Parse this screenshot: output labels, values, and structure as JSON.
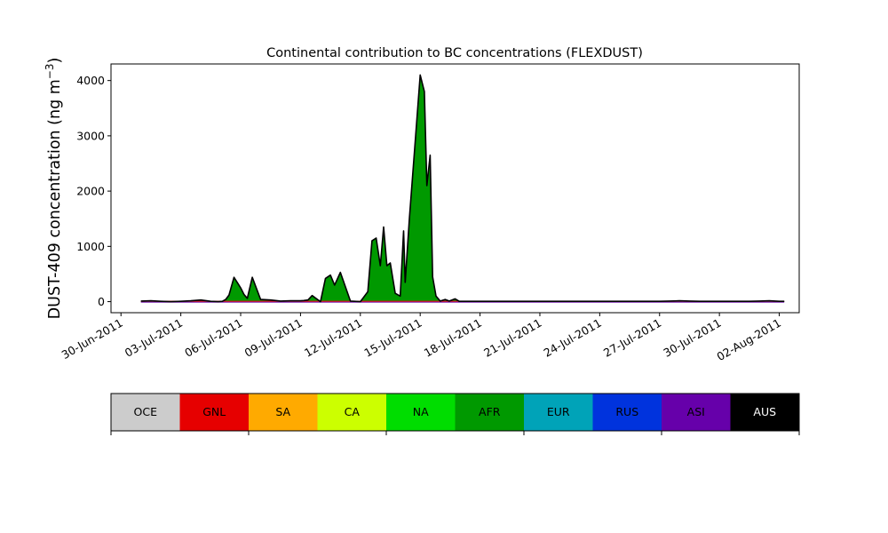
{
  "chart_data": {
    "type": "area",
    "title": "Continental contribution to BC concentrations (FLEXDUST)",
    "ylabel_main": "DUST-409 concentration (ng m",
    "ylabel_sup": "−3",
    "ylabel_end": ")",
    "xlabel": "",
    "xlim": [
      "2011-06-29T12:00",
      "2011-08-03T00:00"
    ],
    "ylim": [
      -200,
      4300
    ],
    "yticks": [
      0,
      1000,
      2000,
      3000,
      4000
    ],
    "ytick_labels": [
      "0",
      "1000",
      "2000",
      "3000",
      "4000"
    ],
    "xticks": [
      "2011-06-30",
      "2011-07-03",
      "2011-07-06",
      "2011-07-09",
      "2011-07-12",
      "2011-07-15",
      "2011-07-18",
      "2011-07-21",
      "2011-07-24",
      "2011-07-27",
      "2011-07-30",
      "2011-08-02"
    ],
    "xtick_labels": [
      "30-Jun-2011",
      "03-Jul-2011",
      "06-Jul-2011",
      "09-Jul-2011",
      "12-Jul-2011",
      "15-Jul-2011",
      "18-Jul-2011",
      "21-Jul-2011",
      "24-Jul-2011",
      "27-Jul-2011",
      "30-Jul-2011",
      "02-Aug-2011"
    ],
    "grid": false,
    "x": [
      "2011-07-01T00:00",
      "2011-07-01T12:00",
      "2011-07-02T00:00",
      "2011-07-02T12:00",
      "2011-07-03T00:00",
      "2011-07-03T12:00",
      "2011-07-04T00:00",
      "2011-07-04T12:00",
      "2011-07-04T21:00",
      "2011-07-05T02:00",
      "2011-07-05T06:00",
      "2011-07-05T10:00",
      "2011-07-05T16:00",
      "2011-07-05T21:00",
      "2011-07-06T00:00",
      "2011-07-06T04:00",
      "2011-07-06T08:00",
      "2011-07-06T14:00",
      "2011-07-07T00:00",
      "2011-07-07T12:00",
      "2011-07-08T00:00",
      "2011-07-08T12:00",
      "2011-07-09T00:00",
      "2011-07-09T04:00",
      "2011-07-09T09:00",
      "2011-07-09T14:00",
      "2011-07-10T00:00",
      "2011-07-10T06:00",
      "2011-07-10T12:00",
      "2011-07-10T17:00",
      "2011-07-11T00:00",
      "2011-07-11T12:00",
      "2011-07-12T00:00",
      "2011-07-12T09:00",
      "2011-07-12T14:00",
      "2011-07-12T19:00",
      "2011-07-13T00:00",
      "2011-07-13T04:00",
      "2011-07-13T08:00",
      "2011-07-13T12:00",
      "2011-07-13T18:00",
      "2011-07-14T00:00",
      "2011-07-14T04:00",
      "2011-07-14T06:00",
      "2011-07-14T11:00",
      "2011-07-14T18:00",
      "2011-07-15T00:00",
      "2011-07-15T05:00",
      "2011-07-15T08:00",
      "2011-07-15T12:00",
      "2011-07-15T15:00",
      "2011-07-15T19:00",
      "2011-07-16T00:00",
      "2011-07-16T06:00",
      "2011-07-16T11:00",
      "2011-07-16T18:00",
      "2011-07-16T23:00",
      "2011-07-17T12:00",
      "2011-07-18T00:00",
      "2011-07-18T12:00",
      "2011-07-19T00:00",
      "2011-07-19T12:00",
      "2011-07-20T00:00",
      "2011-07-20T12:00",
      "2011-07-21T00:00",
      "2011-07-21T12:00",
      "2011-07-22T00:00",
      "2011-07-22T12:00",
      "2011-07-23T00:00",
      "2011-07-23T12:00",
      "2011-07-24T00:00",
      "2011-07-24T12:00",
      "2011-07-25T00:00",
      "2011-07-25T12:00",
      "2011-07-26T00:00",
      "2011-07-26T12:00",
      "2011-07-27T00:00",
      "2011-07-27T12:00",
      "2011-07-28T00:00",
      "2011-07-28T12:00",
      "2011-07-29T00:00",
      "2011-07-29T12:00",
      "2011-07-30T00:00",
      "2011-07-30T12:00",
      "2011-07-31T00:00",
      "2011-07-31T12:00",
      "2011-08-01T00:00",
      "2011-08-01T12:00",
      "2011-08-02T00:00",
      "2011-08-02T06:00"
    ],
    "series": [
      {
        "name": "AFR",
        "color": "#009900",
        "values": [
          10,
          15,
          5,
          0,
          5,
          15,
          30,
          5,
          0,
          5,
          40,
          120,
          440,
          320,
          250,
          130,
          60,
          440,
          40,
          30,
          10,
          15,
          15,
          20,
          30,
          110,
          0,
          420,
          480,
          300,
          530,
          10,
          0,
          180,
          1100,
          1150,
          650,
          1350,
          650,
          700,
          150,
          100,
          1280,
          350,
          1500,
          2900,
          4100,
          3800,
          2100,
          2650,
          450,
          100,
          10,
          40,
          10,
          50,
          5,
          5,
          5,
          5,
          5,
          5,
          5,
          5,
          5,
          5,
          5,
          5,
          5,
          5,
          5,
          5,
          5,
          5,
          5,
          5,
          5,
          10,
          15,
          10,
          5,
          5,
          5,
          5,
          5,
          5,
          10,
          15,
          5,
          5
        ]
      }
    ],
    "colorbar": {
      "labels": [
        "OCE",
        "GNL",
        "SA",
        "CA",
        "NA",
        "AFR",
        "EUR",
        "RUS",
        "ASI",
        "AUS"
      ],
      "colors": [
        "#cccccc",
        "#e60000",
        "#ffaa00",
        "#ccff00",
        "#00dd00",
        "#009900",
        "#00a3b8",
        "#0033dd",
        "#6600aa",
        "#000000"
      ],
      "text_colors": [
        "#000000",
        "#000000",
        "#000000",
        "#000000",
        "#000000",
        "#000000",
        "#000000",
        "#000000",
        "#000000",
        "#ffffff"
      ]
    }
  }
}
